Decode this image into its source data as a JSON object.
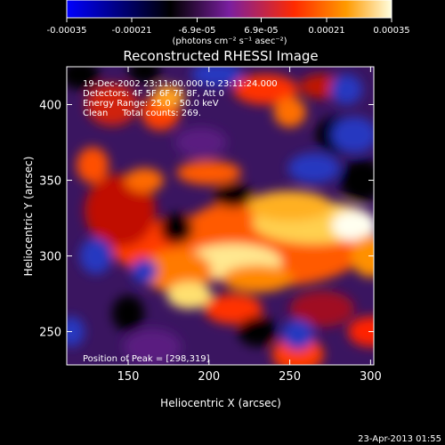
{
  "chart_data": {
    "type": "heatmap",
    "title": "Reconstructed RHESSI Image",
    "xlabel": "Heliocentric X (arcsec)",
    "ylabel": "Heliocentric Y (arcsec)",
    "xlim": [
      112,
      302
    ],
    "ylim": [
      228,
      425
    ],
    "xticks": [
      "150",
      "200",
      "250",
      "300"
    ],
    "xtick_values": [
      150,
      200,
      250,
      300
    ],
    "yticks": [
      "250",
      "300",
      "350",
      "400"
    ],
    "ytick_values": [
      250,
      300,
      350,
      400
    ],
    "colorbar": {
      "ticks": [
        "-0.00035",
        "-0.00021",
        "-6.9e-05",
        "6.9e-05",
        "0.00021",
        "0.00035"
      ],
      "tick_values": [
        -0.00035,
        -0.00021,
        -6.9e-05,
        6.9e-05,
        0.00021,
        0.00035
      ],
      "range": [
        -0.00035,
        0.00035
      ],
      "units_label": "(photons cm⁻² s⁻¹ asec⁻²)",
      "colormap": [
        "#0000ff",
        "#000000",
        "#7a1fa0",
        "#ff2a00",
        "#ff9a00",
        "#ffffe0"
      ]
    },
    "annotations": [
      "19-Dec-2002 23:11:00.000 to 23:11:24.000",
      "Detectors: 4F 5F 6F 7F 8F, Att 0",
      "Energy Range: 25.0 - 50.0 keV",
      "Clean     Total counts: 269."
    ],
    "peak_label": "Position of Peak = [298,319]",
    "peak_position": [
      298,
      319
    ],
    "grid": false
  },
  "footer": {
    "timestamp": "23-Apr-2013 01:55"
  }
}
